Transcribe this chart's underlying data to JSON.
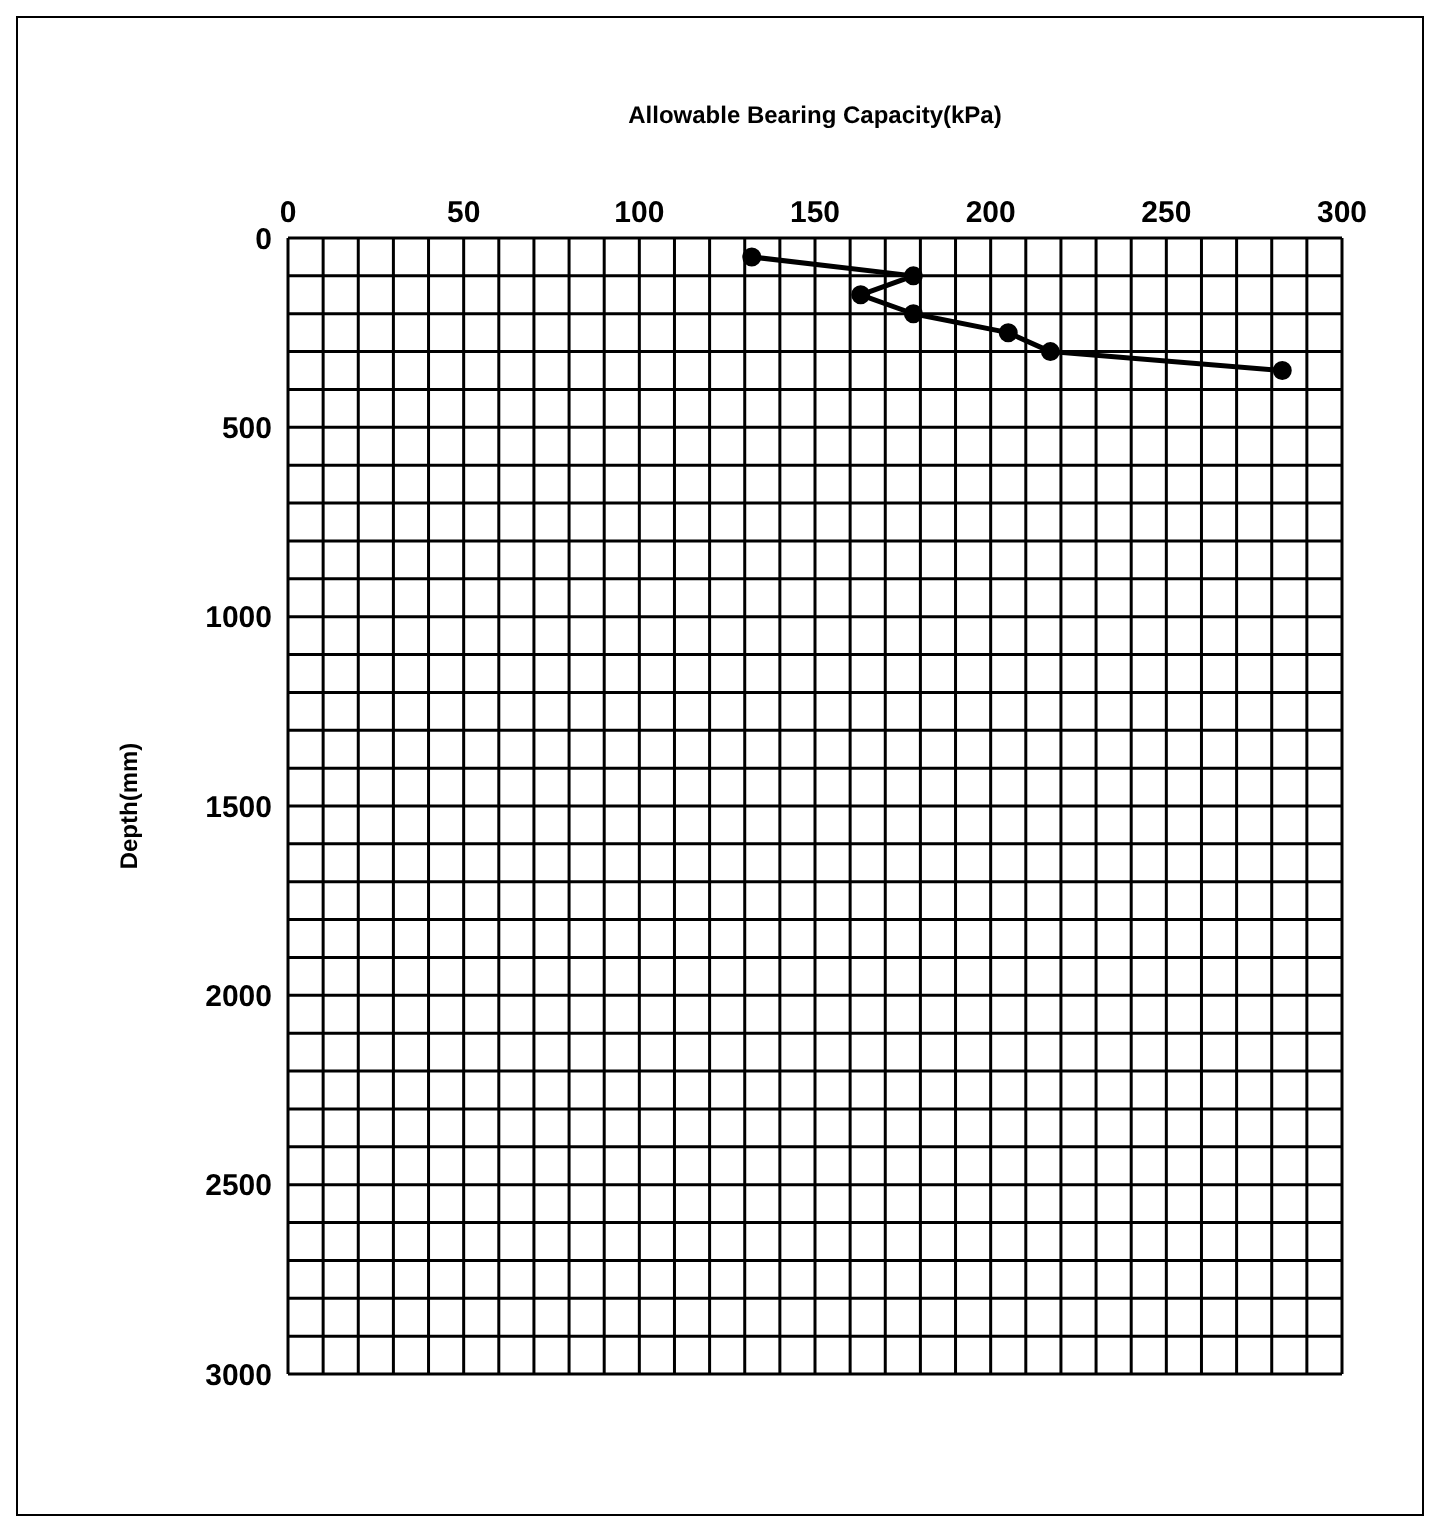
{
  "chart_data": {
    "type": "line",
    "xlabel": "Allowable Bearing Capacity(kPa)",
    "ylabel": "Depth(mm)",
    "series": [
      {
        "color": "#000000",
        "x": [
          132,
          178,
          163,
          178,
          205,
          217,
          283
        ],
        "values": [
          50,
          100,
          150,
          200,
          250,
          300,
          350
        ]
      }
    ],
    "xlim": [
      0,
      300
    ],
    "xticks": [
      0,
      50,
      100,
      150,
      200,
      250,
      300
    ],
    "ylim": [
      3000,
      0
    ],
    "yticks": [
      0,
      500,
      1000,
      1500,
      2000,
      2500,
      3000
    ],
    "grid": true,
    "marker": "circle",
    "line_style": "solid"
  }
}
